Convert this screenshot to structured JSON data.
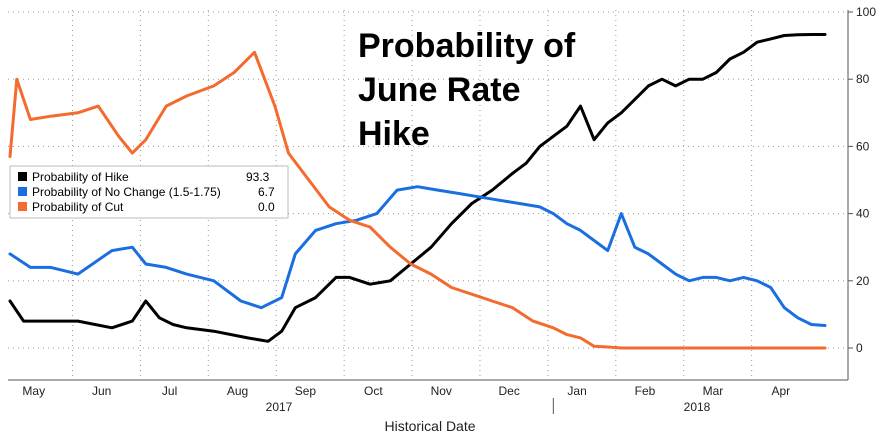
{
  "chart_data": {
    "type": "line",
    "title": "Probability of June Rate Hike",
    "title_lines": [
      "Probability of",
      "June Rate",
      "Hike"
    ],
    "xlabel": "Historical Date",
    "ylim": [
      0,
      100
    ],
    "yticks": [
      0,
      20,
      40,
      60,
      80,
      100
    ],
    "x_unit": "month index (0 = May 1, 2017)",
    "xlim": [
      0,
      12
    ],
    "month_ticks": [
      "May",
      "Jun",
      "Jul",
      "Aug",
      "Sep",
      "Oct",
      "Nov",
      "Dec",
      "Jan",
      "Feb",
      "Mar",
      "Apr"
    ],
    "year_labels": [
      {
        "label": "2017",
        "at": 4.5
      },
      {
        "label": "2018",
        "at": 10
      }
    ],
    "year_divider_at": 8,
    "grid": true,
    "legend_placement": "middle-left",
    "series": [
      {
        "name": "Probability of Hike",
        "last_value": "93.3",
        "color": "#000000",
        "x": [
          0,
          0.2,
          0.5,
          1,
          1.5,
          1.8,
          2,
          2.2,
          2.4,
          2.6,
          3,
          3.5,
          3.8,
          4,
          4.2,
          4.5,
          4.8,
          5,
          5.3,
          5.6,
          5.9,
          6.2,
          6.5,
          6.8,
          7.1,
          7.4,
          7.6,
          7.8,
          8,
          8.2,
          8.4,
          8.6,
          8.8,
          9,
          9.2,
          9.4,
          9.6,
          9.8,
          10,
          10.2,
          10.4,
          10.6,
          10.8,
          11,
          11.2,
          11.4,
          11.6,
          11.8,
          12
        ],
        "y": [
          14,
          8,
          8,
          8,
          6,
          8,
          14,
          9,
          7,
          6,
          5,
          3,
          2,
          5,
          12,
          15,
          21,
          21,
          19,
          20,
          25,
          30,
          37,
          43,
          47,
          52,
          55,
          60,
          63,
          66,
          72,
          62,
          67,
          70,
          74,
          78,
          80,
          78,
          80,
          80,
          82,
          86,
          88,
          91,
          92,
          93,
          93.2,
          93.3,
          93.3
        ]
      },
      {
        "name": "Probability of No Change (1.5-1.75)",
        "last_value": "6.7",
        "color": "#1a6fe0",
        "x": [
          0,
          0.3,
          0.6,
          1,
          1.5,
          1.8,
          2,
          2.3,
          2.6,
          3,
          3.4,
          3.7,
          4,
          4.2,
          4.5,
          4.8,
          5.1,
          5.4,
          5.7,
          6,
          6.3,
          6.6,
          6.9,
          7.2,
          7.5,
          7.8,
          8,
          8.2,
          8.4,
          8.6,
          8.8,
          9,
          9.2,
          9.4,
          9.6,
          9.8,
          10,
          10.2,
          10.4,
          10.6,
          10.8,
          11,
          11.2,
          11.4,
          11.6,
          11.8,
          12
        ],
        "y": [
          28,
          24,
          24,
          22,
          29,
          30,
          25,
          24,
          22,
          20,
          14,
          12,
          15,
          28,
          35,
          37,
          38,
          40,
          47,
          48,
          47,
          46,
          45,
          44,
          43,
          42,
          40,
          37,
          35,
          32,
          29,
          40,
          30,
          28,
          25,
          22,
          20,
          21,
          21,
          20,
          21,
          20,
          18,
          12,
          9,
          7,
          6.7
        ]
      },
      {
        "name": "Probability of Cut",
        "last_value": "0.0",
        "color": "#f36b2f",
        "x": [
          0,
          0.1,
          0.3,
          0.6,
          1,
          1.3,
          1.6,
          1.8,
          2,
          2.3,
          2.6,
          3,
          3.3,
          3.6,
          3.9,
          4.1,
          4.4,
          4.7,
          5,
          5.3,
          5.6,
          5.9,
          6.2,
          6.5,
          6.8,
          7.1,
          7.4,
          7.7,
          8,
          8.2,
          8.4,
          8.6,
          8.8,
          9,
          9.5,
          10,
          10.5,
          11,
          11.5,
          12
        ],
        "y": [
          57,
          80,
          68,
          69,
          70,
          72,
          63,
          58,
          62,
          72,
          75,
          78,
          82,
          88,
          72,
          58,
          50,
          42,
          38,
          36,
          30,
          25,
          22,
          18,
          16,
          14,
          12,
          8,
          6,
          4,
          3,
          0.5,
          0.3,
          0,
          0,
          0,
          0,
          0,
          0,
          0
        ]
      }
    ]
  }
}
